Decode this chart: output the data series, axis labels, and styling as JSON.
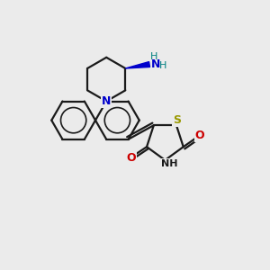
{
  "bg_color": "#ebebeb",
  "bond_color": "#1a1a1a",
  "N_color": "#0000cc",
  "O_color": "#cc0000",
  "S_color": "#999900",
  "teal_color": "#008080",
  "line_width": 1.6,
  "fig_size": [
    3.0,
    3.0
  ],
  "dpi": 100,
  "xlim": [
    0,
    10
  ],
  "ylim": [
    0,
    10
  ]
}
